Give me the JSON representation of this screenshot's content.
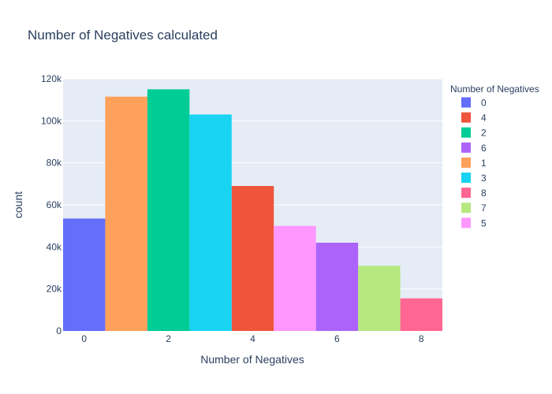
{
  "chart_data": {
    "type": "bar",
    "title": "Number of Negatives calculated",
    "xlabel": "Number of Negatives",
    "ylabel": "count",
    "legend_title": "Number of Negatives",
    "legend_position": "right",
    "grid": true,
    "xlim": [
      -0.5,
      8.5
    ],
    "ylim": [
      0,
      120000
    ],
    "x_ticks": [
      0,
      2,
      4,
      6,
      8
    ],
    "y_ticks": [
      0,
      20000,
      40000,
      60000,
      80000,
      100000,
      120000
    ],
    "y_tick_labels": [
      "0",
      "20k",
      "40k",
      "60k",
      "80k",
      "100k",
      "120k"
    ],
    "series": [
      {
        "name": "0",
        "x": 0,
        "value": 53500,
        "color": "#636efa"
      },
      {
        "name": "4",
        "x": 4,
        "value": 69000,
        "color": "#EF553B"
      },
      {
        "name": "2",
        "x": 2,
        "value": 115000,
        "color": "#00cc96"
      },
      {
        "name": "6",
        "x": 6,
        "value": 42000,
        "color": "#ab63fa"
      },
      {
        "name": "1",
        "x": 1,
        "value": 111500,
        "color": "#FFA15A"
      },
      {
        "name": "3",
        "x": 3,
        "value": 103000,
        "color": "#19d3f3"
      },
      {
        "name": "8",
        "x": 8,
        "value": 15500,
        "color": "#FF6692"
      },
      {
        "name": "7",
        "x": 7,
        "value": 31000,
        "color": "#B6E880"
      },
      {
        "name": "5",
        "x": 5,
        "value": 50000,
        "color": "#FF97FF"
      }
    ]
  }
}
